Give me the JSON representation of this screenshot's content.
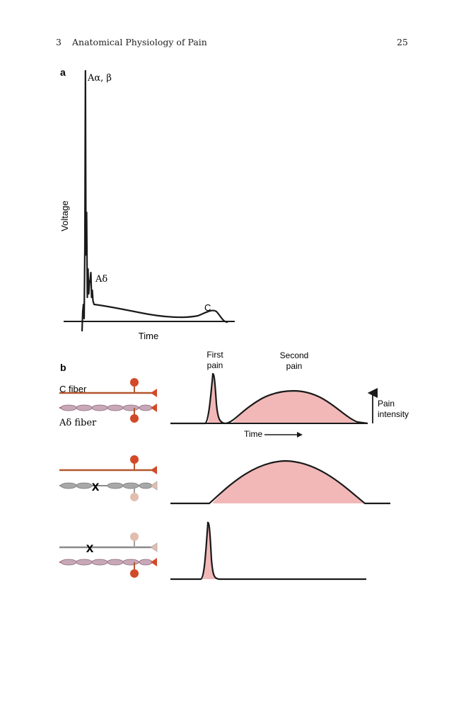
{
  "header": {
    "chapter_number": "3",
    "chapter_title": "Anatomical Physiology of Pain",
    "page_number": "25"
  },
  "panel_a": {
    "label": "a",
    "ylabel": "Voltage",
    "xlabel": "Time",
    "peaks": {
      "a_alpha_beta": "Aα, β",
      "a_delta": "Aδ",
      "c": "C"
    }
  },
  "panel_b": {
    "label": "b",
    "c_fiber_label": "C fiber",
    "a_delta_fiber_label": "Aδ fiber",
    "first_pain_label": [
      "First",
      "pain"
    ],
    "second_pain_label": [
      "Second",
      "pain"
    ],
    "pain_intensity_label": [
      "Pain",
      "intensity"
    ],
    "time_label": "Time",
    "block_mark": "x",
    "rows": [
      {
        "condition": "both fibers intact",
        "first_pain": true,
        "second_pain": true
      },
      {
        "condition": "A-delta fiber blocked",
        "first_pain": false,
        "second_pain": true
      },
      {
        "condition": "C fiber blocked",
        "first_pain": true,
        "second_pain": false
      }
    ]
  },
  "colors": {
    "fiber_red": "#b5572f",
    "node_red": "#d24a28",
    "node_faded": "#e2beb0",
    "myelin_pink": "#c8a8b8",
    "fiber_gray": "#8a8a8a",
    "myelin_gray": "#a8a8a8",
    "pain_fill": "#f2b8b8",
    "line": "#1a1a1a"
  }
}
